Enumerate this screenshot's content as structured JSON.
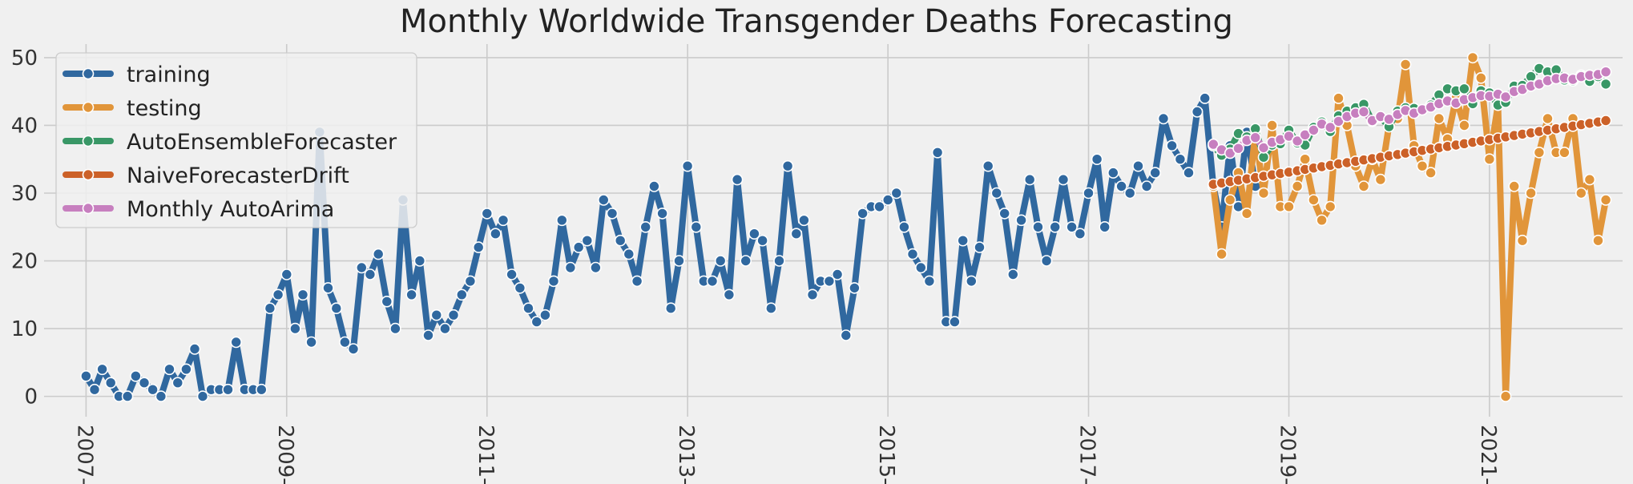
{
  "chart_data": {
    "type": "line",
    "title": "Monthly Worldwide Transgender Deaths Forecasting",
    "xlabel": "",
    "ylabel": "",
    "ylim": [
      -3,
      52
    ],
    "xlim": [
      "2006-08-01",
      "2022-05-01"
    ],
    "grid": true,
    "legend_position": "top-left",
    "y_ticks": [
      0,
      10,
      20,
      30,
      40,
      50
    ],
    "x_ticks": [
      {
        "date": "2007-01-01",
        "label": "2007-"
      },
      {
        "date": "2009-01-01",
        "label": "2009-"
      },
      {
        "date": "2011-01-01",
        "label": "2011-"
      },
      {
        "date": "2013-01-01",
        "label": "2013-"
      },
      {
        "date": "2015-01-01",
        "label": "2015-"
      },
      {
        "date": "2017-01-01",
        "label": "2017-"
      },
      {
        "date": "2019-01-01",
        "label": "2019-"
      },
      {
        "date": "2021-01-01",
        "label": "2021-"
      }
    ],
    "series": [
      {
        "name": "training",
        "color": "#30689f",
        "start": "2007-01-01",
        "values": [
          3,
          1,
          4,
          2,
          0,
          0,
          3,
          2,
          1,
          0,
          4,
          2,
          4,
          7,
          0,
          1,
          1,
          1,
          8,
          1,
          1,
          1,
          13,
          15,
          18,
          10,
          15,
          8,
          39,
          16,
          13,
          8,
          7,
          19,
          18,
          21,
          14,
          10,
          29,
          15,
          20,
          9,
          12,
          10,
          12,
          15,
          17,
          22,
          27,
          24,
          26,
          18,
          16,
          13,
          11,
          12,
          17,
          26,
          19,
          22,
          23,
          19,
          29,
          27,
          23,
          21,
          17,
          25,
          31,
          27,
          13,
          20,
          34,
          25,
          17,
          17,
          20,
          15,
          32,
          20,
          24,
          23,
          13,
          20,
          34,
          24,
          26,
          15,
          17,
          17,
          18,
          9,
          16,
          27,
          28,
          28,
          29,
          30,
          25,
          21,
          19,
          17,
          36,
          11,
          11,
          23,
          17,
          22,
          34,
          30,
          27,
          18,
          26,
          32,
          25,
          20,
          25,
          32,
          25,
          24,
          30,
          35,
          25,
          33,
          31,
          30,
          34,
          31,
          33,
          41,
          37,
          35,
          33,
          42,
          44,
          31,
          25,
          37,
          28,
          39,
          31
        ]
      },
      {
        "name": "testing",
        "color": "#e1953a",
        "start": "2018-04-01",
        "values": [
          31,
          21,
          29,
          33,
          27,
          39,
          30,
          40,
          28,
          28,
          31,
          35,
          29,
          26,
          28,
          44,
          40,
          34,
          31,
          35,
          32,
          40,
          41,
          49,
          37,
          34,
          33,
          41,
          38,
          44,
          40,
          50,
          47,
          35,
          43,
          0,
          31,
          23,
          30,
          36,
          41,
          36,
          36,
          41,
          30,
          32,
          23,
          29
        ]
      },
      {
        "name": "AutoEnsembleForecaster",
        "color": "#399766",
        "start": "2018-04-01",
        "values": [
          37,
          35.6,
          36.5,
          38.8,
          38.3,
          39.5,
          35.3,
          37.1,
          37.3,
          39.3,
          37.4,
          37.1,
          39.7,
          40.5,
          39.1,
          41.4,
          42.1,
          42.6,
          43.1,
          40.6,
          41.2,
          39.8,
          42.1,
          42.6,
          42.5,
          42.3,
          43,
          44.5,
          45.4,
          45.1,
          45.4,
          43.2,
          45.1,
          44.8,
          43,
          43.4,
          45.8,
          45.9,
          47.2,
          48.4,
          47.9,
          48.2,
          46.7,
          46.6,
          47.4,
          46.5,
          47.2,
          46.1
        ]
      },
      {
        "name": "NaiveForecasterDrift",
        "color": "#cc6128",
        "start": "2018-04-01",
        "values": [
          31.3,
          31.5,
          31.7,
          31.9,
          32.1,
          32.3,
          32.5,
          32.7,
          32.9,
          33.1,
          33.3,
          33.5,
          33.7,
          33.9,
          34.1,
          34.3,
          34.5,
          34.7,
          34.9,
          35.1,
          35.3,
          35.5,
          35.7,
          35.9,
          36.1,
          36.3,
          36.5,
          36.7,
          36.9,
          37.1,
          37.3,
          37.5,
          37.7,
          37.9,
          38.1,
          38.3,
          38.5,
          38.7,
          38.9,
          39.1,
          39.3,
          39.5,
          39.7,
          39.9,
          40.1,
          40.3,
          40.5,
          40.7
        ]
      },
      {
        "name": "Monthly AutoArima",
        "color": "#c77fbf",
        "start": "2018-04-01",
        "values": [
          37.2,
          36.4,
          35.9,
          36.6,
          37.8,
          38.2,
          36.7,
          37.5,
          37.9,
          38.4,
          37.7,
          38.6,
          39.3,
          40.2,
          39.7,
          40.6,
          41.3,
          41.8,
          42,
          40.7,
          41.3,
          40.9,
          41.6,
          42.2,
          41.8,
          42.3,
          42.7,
          43.2,
          43.6,
          43.3,
          43.8,
          44.1,
          44.4,
          44.3,
          44.6,
          44.2,
          45,
          45.3,
          45.8,
          46.1,
          46.6,
          46.9,
          47,
          46.8,
          47.2,
          47.4,
          47.5,
          47.9
        ]
      }
    ]
  }
}
